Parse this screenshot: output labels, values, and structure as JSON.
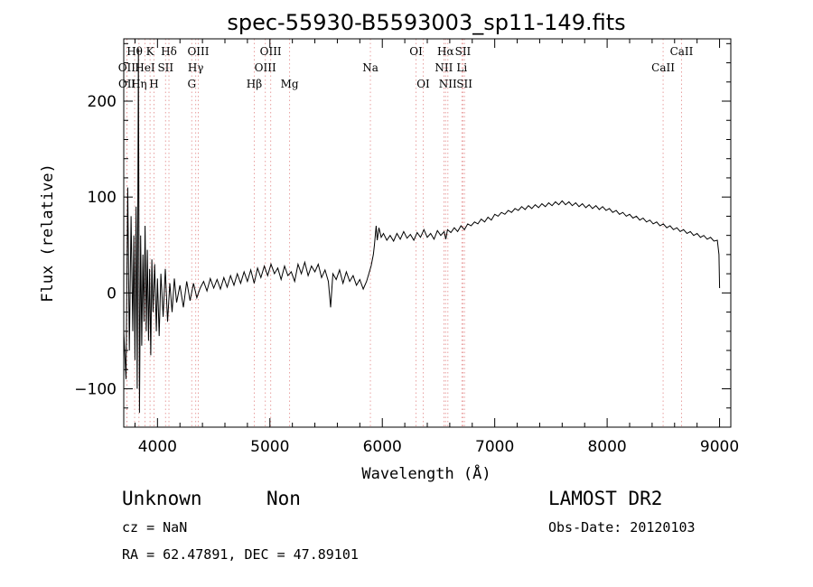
{
  "chart_data": {
    "type": "line",
    "title": "spec-55930-B5593003_sp11-149.fits",
    "xlabel": "Wavelength (Å)",
    "ylabel": "Flux (relative)",
    "xlim": [
      3700,
      9100
    ],
    "ylim": [
      -140,
      265
    ],
    "xticks": [
      4000,
      5000,
      6000,
      7000,
      8000,
      9000
    ],
    "yticks": [
      -100,
      0,
      100,
      200
    ],
    "grid": false,
    "series": [
      {
        "points": [
          [
            3700,
            -40
          ],
          [
            3720,
            -90
          ],
          [
            3735,
            110
          ],
          [
            3750,
            -60
          ],
          [
            3765,
            80
          ],
          [
            3780,
            -40
          ],
          [
            3790,
            60
          ],
          [
            3800,
            -70
          ],
          [
            3810,
            90
          ],
          [
            3820,
            -100
          ],
          [
            3830,
            255
          ],
          [
            3840,
            -125
          ],
          [
            3850,
            60
          ],
          [
            3860,
            -55
          ],
          [
            3870,
            40
          ],
          [
            3880,
            -30
          ],
          [
            3890,
            70
          ],
          [
            3900,
            -40
          ],
          [
            3910,
            45
          ],
          [
            3920,
            -50
          ],
          [
            3930,
            25
          ],
          [
            3940,
            -65
          ],
          [
            3950,
            35
          ],
          [
            3960,
            -20
          ],
          [
            3975,
            30
          ],
          [
            3990,
            -40
          ],
          [
            4000,
            15
          ],
          [
            4015,
            -45
          ],
          [
            4030,
            20
          ],
          [
            4050,
            -25
          ],
          [
            4070,
            25
          ],
          [
            4090,
            -30
          ],
          [
            4110,
            10
          ],
          [
            4130,
            -20
          ],
          [
            4150,
            15
          ],
          [
            4170,
            -10
          ],
          [
            4200,
            8
          ],
          [
            4230,
            -15
          ],
          [
            4260,
            12
          ],
          [
            4290,
            -8
          ],
          [
            4320,
            10
          ],
          [
            4350,
            -5
          ],
          [
            4380,
            5
          ],
          [
            4410,
            12
          ],
          [
            4440,
            2
          ],
          [
            4470,
            15
          ],
          [
            4500,
            5
          ],
          [
            4530,
            14
          ],
          [
            4560,
            4
          ],
          [
            4590,
            16
          ],
          [
            4620,
            6
          ],
          [
            4650,
            18
          ],
          [
            4680,
            8
          ],
          [
            4710,
            20
          ],
          [
            4740,
            10
          ],
          [
            4770,
            22
          ],
          [
            4800,
            12
          ],
          [
            4830,
            24
          ],
          [
            4860,
            10
          ],
          [
            4890,
            26
          ],
          [
            4920,
            16
          ],
          [
            4950,
            28
          ],
          [
            4980,
            18
          ],
          [
            5010,
            30
          ],
          [
            5040,
            20
          ],
          [
            5070,
            26
          ],
          [
            5100,
            14
          ],
          [
            5130,
            28
          ],
          [
            5160,
            18
          ],
          [
            5190,
            22
          ],
          [
            5220,
            12
          ],
          [
            5250,
            30
          ],
          [
            5280,
            20
          ],
          [
            5310,
            32
          ],
          [
            5340,
            18
          ],
          [
            5370,
            28
          ],
          [
            5400,
            22
          ],
          [
            5430,
            30
          ],
          [
            5460,
            16
          ],
          [
            5490,
            24
          ],
          [
            5520,
            12
          ],
          [
            5540,
            -15
          ],
          [
            5560,
            20
          ],
          [
            5590,
            14
          ],
          [
            5620,
            24
          ],
          [
            5650,
            10
          ],
          [
            5680,
            22
          ],
          [
            5710,
            12
          ],
          [
            5740,
            18
          ],
          [
            5770,
            8
          ],
          [
            5800,
            14
          ],
          [
            5830,
            4
          ],
          [
            5860,
            12
          ],
          [
            5880,
            20
          ],
          [
            5900,
            28
          ],
          [
            5920,
            40
          ],
          [
            5930,
            50
          ],
          [
            5945,
            70
          ],
          [
            5955,
            55
          ],
          [
            5970,
            68
          ],
          [
            5990,
            58
          ],
          [
            6010,
            62
          ],
          [
            6040,
            55
          ],
          [
            6070,
            60
          ],
          [
            6100,
            54
          ],
          [
            6130,
            62
          ],
          [
            6160,
            56
          ],
          [
            6190,
            64
          ],
          [
            6220,
            57
          ],
          [
            6250,
            61
          ],
          [
            6280,
            55
          ],
          [
            6310,
            63
          ],
          [
            6340,
            58
          ],
          [
            6370,
            66
          ],
          [
            6400,
            58
          ],
          [
            6430,
            62
          ],
          [
            6460,
            56
          ],
          [
            6490,
            65
          ],
          [
            6520,
            60
          ],
          [
            6550,
            64
          ],
          [
            6565,
            56
          ],
          [
            6580,
            66
          ],
          [
            6610,
            63
          ],
          [
            6640,
            68
          ],
          [
            6670,
            64
          ],
          [
            6700,
            70
          ],
          [
            6730,
            66
          ],
          [
            6760,
            72
          ],
          [
            6790,
            70
          ],
          [
            6820,
            74
          ],
          [
            6850,
            72
          ],
          [
            6880,
            77
          ],
          [
            6910,
            74
          ],
          [
            6940,
            79
          ],
          [
            6970,
            76
          ],
          [
            7000,
            82
          ],
          [
            7030,
            80
          ],
          [
            7060,
            84
          ],
          [
            7090,
            82
          ],
          [
            7120,
            86
          ],
          [
            7150,
            84
          ],
          [
            7180,
            88
          ],
          [
            7210,
            86
          ],
          [
            7240,
            90
          ],
          [
            7270,
            87
          ],
          [
            7300,
            91
          ],
          [
            7330,
            88
          ],
          [
            7360,
            92
          ],
          [
            7390,
            89
          ],
          [
            7420,
            93
          ],
          [
            7450,
            90
          ],
          [
            7480,
            94
          ],
          [
            7510,
            91
          ],
          [
            7540,
            95
          ],
          [
            7570,
            92
          ],
          [
            7600,
            96
          ],
          [
            7630,
            92
          ],
          [
            7660,
            95
          ],
          [
            7690,
            91
          ],
          [
            7720,
            94
          ],
          [
            7750,
            90
          ],
          [
            7780,
            93
          ],
          [
            7810,
            89
          ],
          [
            7840,
            92
          ],
          [
            7870,
            88
          ],
          [
            7900,
            91
          ],
          [
            7930,
            87
          ],
          [
            7960,
            90
          ],
          [
            7990,
            86
          ],
          [
            8020,
            88
          ],
          [
            8050,
            84
          ],
          [
            8080,
            86
          ],
          [
            8110,
            82
          ],
          [
            8140,
            84
          ],
          [
            8170,
            80
          ],
          [
            8200,
            82
          ],
          [
            8230,
            78
          ],
          [
            8260,
            80
          ],
          [
            8290,
            76
          ],
          [
            8320,
            78
          ],
          [
            8350,
            74
          ],
          [
            8380,
            76
          ],
          [
            8410,
            72
          ],
          [
            8440,
            74
          ],
          [
            8470,
            70
          ],
          [
            8500,
            72
          ],
          [
            8530,
            68
          ],
          [
            8560,
            70
          ],
          [
            8590,
            66
          ],
          [
            8620,
            68
          ],
          [
            8650,
            64
          ],
          [
            8680,
            66
          ],
          [
            8710,
            62
          ],
          [
            8740,
            64
          ],
          [
            8770,
            60
          ],
          [
            8800,
            62
          ],
          [
            8830,
            58
          ],
          [
            8860,
            60
          ],
          [
            8890,
            56
          ],
          [
            8920,
            58
          ],
          [
            8950,
            54
          ],
          [
            8980,
            55
          ],
          [
            8995,
            40
          ],
          [
            9000,
            5
          ]
        ]
      }
    ],
    "lines": [
      {
        "label": "Hθ",
        "wave": 3797,
        "row": 0
      },
      {
        "label": "OII",
        "wave": 3727,
        "row": 1
      },
      {
        "label": "OII",
        "wave": 3729,
        "row": 2
      },
      {
        "label": "Hη",
        "wave": 3835,
        "row": 2
      },
      {
        "label": "HeI",
        "wave": 3889,
        "row": 1
      },
      {
        "label": "K",
        "wave": 3934,
        "row": 0
      },
      {
        "label": "H",
        "wave": 3969,
        "row": 2
      },
      {
        "label": "SII",
        "wave": 4072,
        "row": 1
      },
      {
        "label": "Hδ",
        "wave": 4102,
        "row": 0
      },
      {
        "label": "G",
        "wave": 4305,
        "row": 2
      },
      {
        "label": "Hγ",
        "wave": 4340,
        "row": 1
      },
      {
        "label": "OIII",
        "wave": 4363,
        "row": 0
      },
      {
        "label": "Hβ",
        "wave": 4861,
        "row": 2
      },
      {
        "label": "OIII",
        "wave": 4959,
        "row": 1
      },
      {
        "label": "OIII",
        "wave": 5007,
        "row": 0
      },
      {
        "label": "Mg",
        "wave": 5175,
        "row": 2
      },
      {
        "label": "Na",
        "wave": 5894,
        "row": 1
      },
      {
        "label": "OI",
        "wave": 6300,
        "row": 0
      },
      {
        "label": "OI",
        "wave": 6364,
        "row": 2
      },
      {
        "label": "NII",
        "wave": 6548,
        "row": 1
      },
      {
        "label": "Hα",
        "wave": 6563,
        "row": 0
      },
      {
        "label": "NII",
        "wave": 6583,
        "row": 2
      },
      {
        "label": "Li",
        "wave": 6708,
        "row": 1
      },
      {
        "label": "SII",
        "wave": 6717,
        "row": 0
      },
      {
        "label": "SII",
        "wave": 6731,
        "row": 2
      },
      {
        "label": "CaII",
        "wave": 8498,
        "row": 1
      },
      {
        "label": "CaII",
        "wave": 8662,
        "row": 0
      }
    ]
  },
  "footer": {
    "class": "Unknown",
    "subclass": "Non",
    "survey": "LAMOST DR2",
    "redshift": "cz = NaN",
    "obs_date": "Obs-Date: 20120103",
    "coords": "RA =  62.47891, DEC =  47.89101"
  },
  "colors": {
    "spectrum": "#000000",
    "line_marker": "#e8a0a0",
    "axis": "#000000"
  }
}
